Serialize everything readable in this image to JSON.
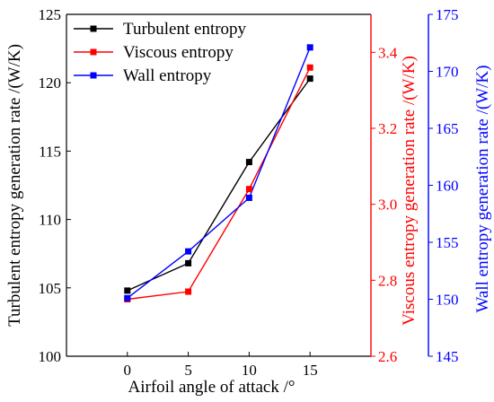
{
  "chart_data": {
    "type": "line",
    "title": "",
    "xlabel": "Airfoil angle of attack /°",
    "x": [
      0,
      5,
      10,
      15
    ],
    "xlim": [
      -5,
      20
    ],
    "xticks": [
      0,
      5,
      10,
      15
    ],
    "grid": false,
    "legend_position": "top-left",
    "axes": {
      "left": {
        "label": "Turbulent entropy generation rate /(W/K)",
        "ylim": [
          100,
          125
        ],
        "ticks": [
          100,
          105,
          110,
          115,
          120,
          125
        ],
        "color": "#000000"
      },
      "right1": {
        "label": "Viscous entropy generation rate /(W/K)",
        "ylim": [
          2.6,
          3.5
        ],
        "ticks": [
          2.6,
          2.8,
          3.0,
          3.2,
          3.4
        ],
        "color": "#ff0000"
      },
      "right2": {
        "label": "Wall entropy generation rate /(W/K)",
        "ylim": [
          145,
          175
        ],
        "ticks": [
          145,
          150,
          155,
          160,
          165,
          170,
          175
        ],
        "color": "#0000ff"
      }
    },
    "series": [
      {
        "name": "Turbulent entropy",
        "axis": "left",
        "color": "#000000",
        "values": [
          104.8,
          106.8,
          114.2,
          120.3
        ]
      },
      {
        "name": "Viscous entropy",
        "axis": "right1",
        "color": "#ff0000",
        "values": [
          2.75,
          2.77,
          3.04,
          3.36
        ]
      },
      {
        "name": "Wall entropy",
        "axis": "right2",
        "color": "#0000ff",
        "values": [
          150.1,
          154.2,
          158.9,
          172.1
        ]
      }
    ]
  }
}
